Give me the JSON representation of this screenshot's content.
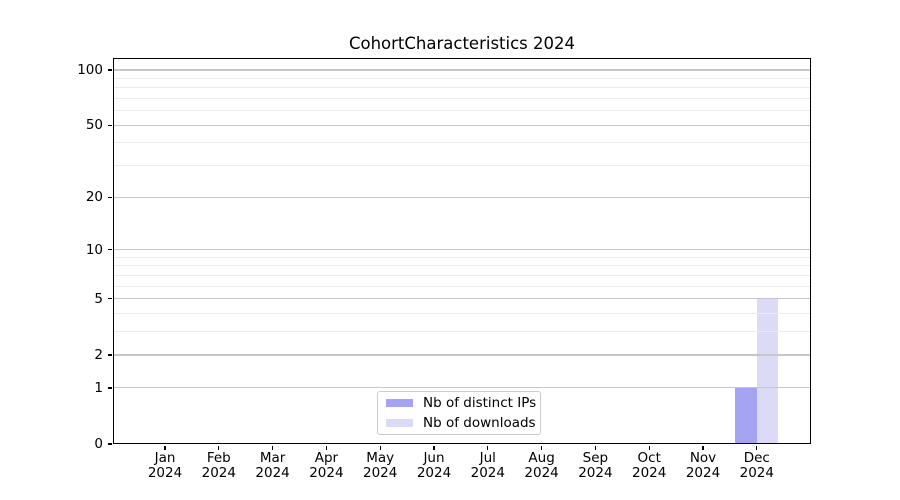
{
  "title": "CohortCharacteristics 2024",
  "chart_data": {
    "type": "bar",
    "title": "CohortCharacteristics 2024",
    "categories": [
      "Jan",
      "Feb",
      "Mar",
      "Apr",
      "May",
      "Jun",
      "Jul",
      "Aug",
      "Sep",
      "Oct",
      "Nov",
      "Dec"
    ],
    "x_year": "2024",
    "series": [
      {
        "name": "Nb of distinct IPs",
        "color": "#a4a4f3",
        "values": [
          0,
          0,
          0,
          0,
          0,
          0,
          0,
          0,
          0,
          0,
          0,
          1
        ]
      },
      {
        "name": "Nb of downloads",
        "color": "#dbdbf8",
        "values": [
          0,
          0,
          0,
          0,
          0,
          0,
          0,
          0,
          0,
          0,
          0,
          5
        ]
      }
    ],
    "y_axis": {
      "scale": "log1p",
      "major_ticks": [
        0,
        1,
        2,
        5,
        10,
        20,
        50,
        100
      ],
      "minor_ticks": [
        3,
        4,
        6,
        7,
        8,
        9,
        30,
        40,
        60,
        70,
        80,
        90
      ],
      "ylim": [
        0,
        116
      ]
    },
    "xlabel": "",
    "ylabel": "",
    "grid": "horizontal",
    "legend_position": "lower center inside",
    "colors": {
      "major_grid": "#c6c6c6",
      "minor_grid": "#ebebeb",
      "axis": "#000000",
      "background": "#ffffff"
    }
  }
}
